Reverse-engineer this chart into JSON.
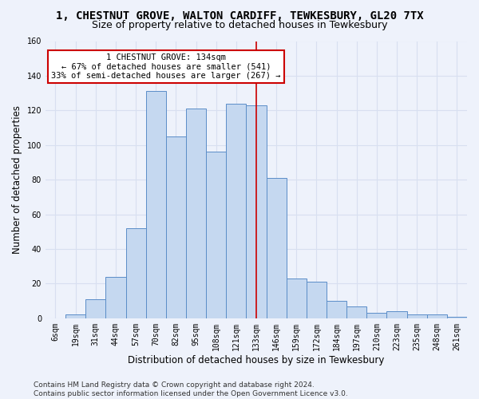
{
  "title": "1, CHESTNUT GROVE, WALTON CARDIFF, TEWKESBURY, GL20 7TX",
  "subtitle": "Size of property relative to detached houses in Tewkesbury",
  "xlabel": "Distribution of detached houses by size in Tewkesbury",
  "ylabel": "Number of detached properties",
  "bar_labels": [
    "6sqm",
    "19sqm",
    "31sqm",
    "44sqm",
    "57sqm",
    "70sqm",
    "82sqm",
    "95sqm",
    "108sqm",
    "121sqm",
    "133sqm",
    "146sqm",
    "159sqm",
    "172sqm",
    "184sqm",
    "197sqm",
    "210sqm",
    "223sqm",
    "235sqm",
    "248sqm",
    "261sqm"
  ],
  "bar_values": [
    0,
    2,
    11,
    24,
    52,
    131,
    105,
    121,
    96,
    124,
    123,
    81,
    23,
    21,
    10,
    7,
    3,
    4,
    2,
    2,
    1
  ],
  "bar_color": "#c5d8f0",
  "bar_edge_color": "#5b8dc8",
  "annotation_text": "1 CHESTNUT GROVE: 134sqm\n← 67% of detached houses are smaller (541)\n33% of semi-detached houses are larger (267) →",
  "annotation_box_color": "#ffffff",
  "annotation_box_edge_color": "#cc0000",
  "vline_color": "#cc0000",
  "vline_index": 10,
  "footer_text": "Contains HM Land Registry data © Crown copyright and database right 2024.\nContains public sector information licensed under the Open Government Licence v3.0.",
  "ylim": [
    0,
    160
  ],
  "yticks": [
    0,
    20,
    40,
    60,
    80,
    100,
    120,
    140,
    160
  ],
  "background_color": "#eef2fb",
  "grid_color": "#d8dff0",
  "title_fontsize": 10,
  "subtitle_fontsize": 9,
  "tick_fontsize": 7,
  "ylabel_fontsize": 8.5,
  "xlabel_fontsize": 8.5,
  "footer_fontsize": 6.5,
  "annotation_fontsize": 7.5
}
